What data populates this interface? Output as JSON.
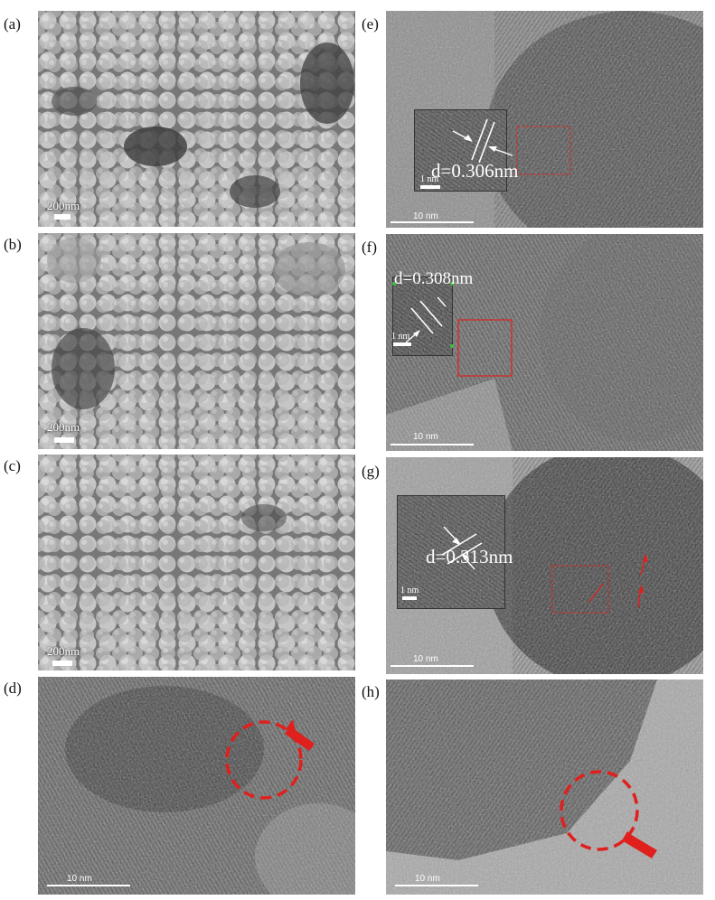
{
  "figure": {
    "panels": [
      {
        "id": "a",
        "label": "(a)",
        "type": "SEM",
        "scale_text": "200nm"
      },
      {
        "id": "b",
        "label": "(b)",
        "type": "SEM",
        "scale_text": "200nm"
      },
      {
        "id": "c",
        "label": "(c)",
        "type": "SEM",
        "scale_text": "200nm"
      },
      {
        "id": "d",
        "label": "(d)",
        "type": "HRTEM",
        "scale_text": "10 nm"
      },
      {
        "id": "e",
        "label": "(e)",
        "type": "HRTEM",
        "scale_text": "10 nm",
        "d_spacing": "d=0.306nm",
        "inset_scale_text": "1 nm"
      },
      {
        "id": "f",
        "label": "(f)",
        "type": "HRTEM",
        "scale_text": "10 nm",
        "d_spacing": "d=0.308nm",
        "inset_scale_text": "1 nm"
      },
      {
        "id": "g",
        "label": "(g)",
        "type": "HRTEM",
        "scale_text": "10 nm",
        "d_spacing": "d=0.313nm",
        "inset_scale_text": "1 nm"
      },
      {
        "id": "h",
        "label": "(h)",
        "type": "HRTEM",
        "scale_text": "10 nm"
      }
    ],
    "colors": {
      "highlight": "#e0201c",
      "annotation": "#ffffff"
    }
  }
}
